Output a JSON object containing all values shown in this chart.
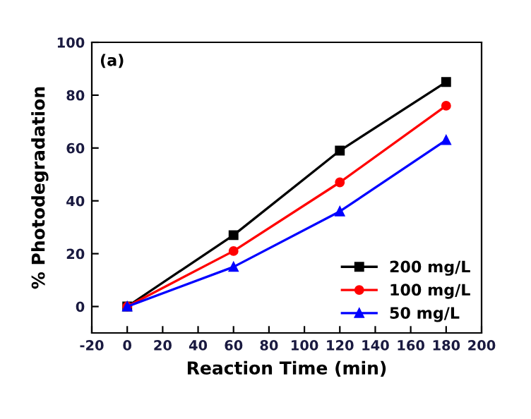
{
  "chart_data": {
    "type": "line",
    "xlabel": "Reaction Time (min)",
    "ylabel": "% Photodegradation",
    "annotations": [
      "(a)"
    ],
    "x": [
      0,
      60,
      120,
      180
    ],
    "series": [
      {
        "name": "200 mg/L",
        "color": "#000000",
        "marker": "square",
        "values": [
          0,
          27,
          59,
          85
        ]
      },
      {
        "name": "100 mg/L",
        "color": "#ff0000",
        "marker": "circle",
        "values": [
          0,
          21,
          47,
          76
        ]
      },
      {
        "name": "50 mg/L",
        "color": "#0000ff",
        "marker": "triangle",
        "values": [
          0,
          15,
          36,
          63
        ]
      }
    ],
    "xlim": [
      -20,
      200
    ],
    "xticks": [
      -20,
      0,
      20,
      40,
      60,
      80,
      100,
      120,
      140,
      160,
      180,
      200
    ],
    "ylim": [
      -10,
      100
    ],
    "yticks": [
      0,
      20,
      40,
      60,
      80,
      100
    ],
    "grid": false,
    "legend": "bottom right",
    "line_style": "solid"
  }
}
